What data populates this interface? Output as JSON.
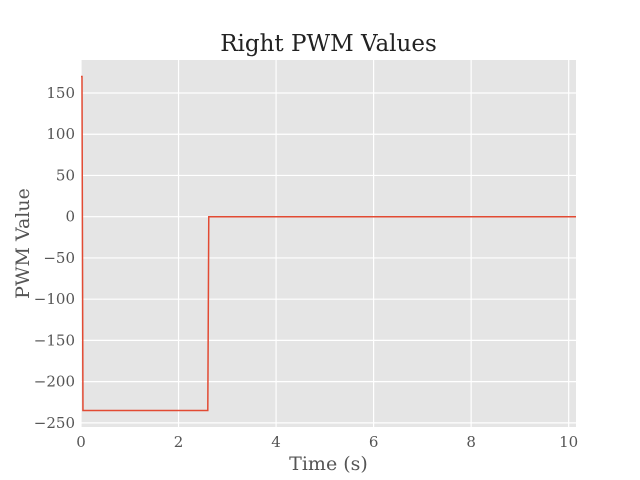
{
  "chart_data": {
    "type": "line",
    "title": "Right PWM Values",
    "xlabel": "Time (s)",
    "ylabel": "PWM Value",
    "xlim": [
      0,
      10.15
    ],
    "ylim": [
      -255,
      190
    ],
    "x_ticks": [
      0,
      2,
      4,
      6,
      8,
      10
    ],
    "x_tick_labels": [
      "0",
      "2",
      "4",
      "6",
      "8",
      "10"
    ],
    "y_ticks": [
      150,
      100,
      50,
      0,
      -50,
      -100,
      -150,
      -200,
      -250
    ],
    "y_tick_labels": [
      "150",
      "100",
      "50",
      "0",
      "−50",
      "−100",
      "−150",
      "−200",
      "−250"
    ],
    "grid": true,
    "series": [
      {
        "color": "#e24a33",
        "x": [
          0,
          0.02,
          0.04,
          2.6,
          2.62,
          10.15
        ],
        "y": [
          170,
          170,
          -235,
          -235,
          0,
          0
        ]
      }
    ],
    "colors": {
      "plot_background": "#e5e5e5",
      "grid": "#ffffff",
      "line": "#e24a33",
      "text": "#555555"
    }
  }
}
